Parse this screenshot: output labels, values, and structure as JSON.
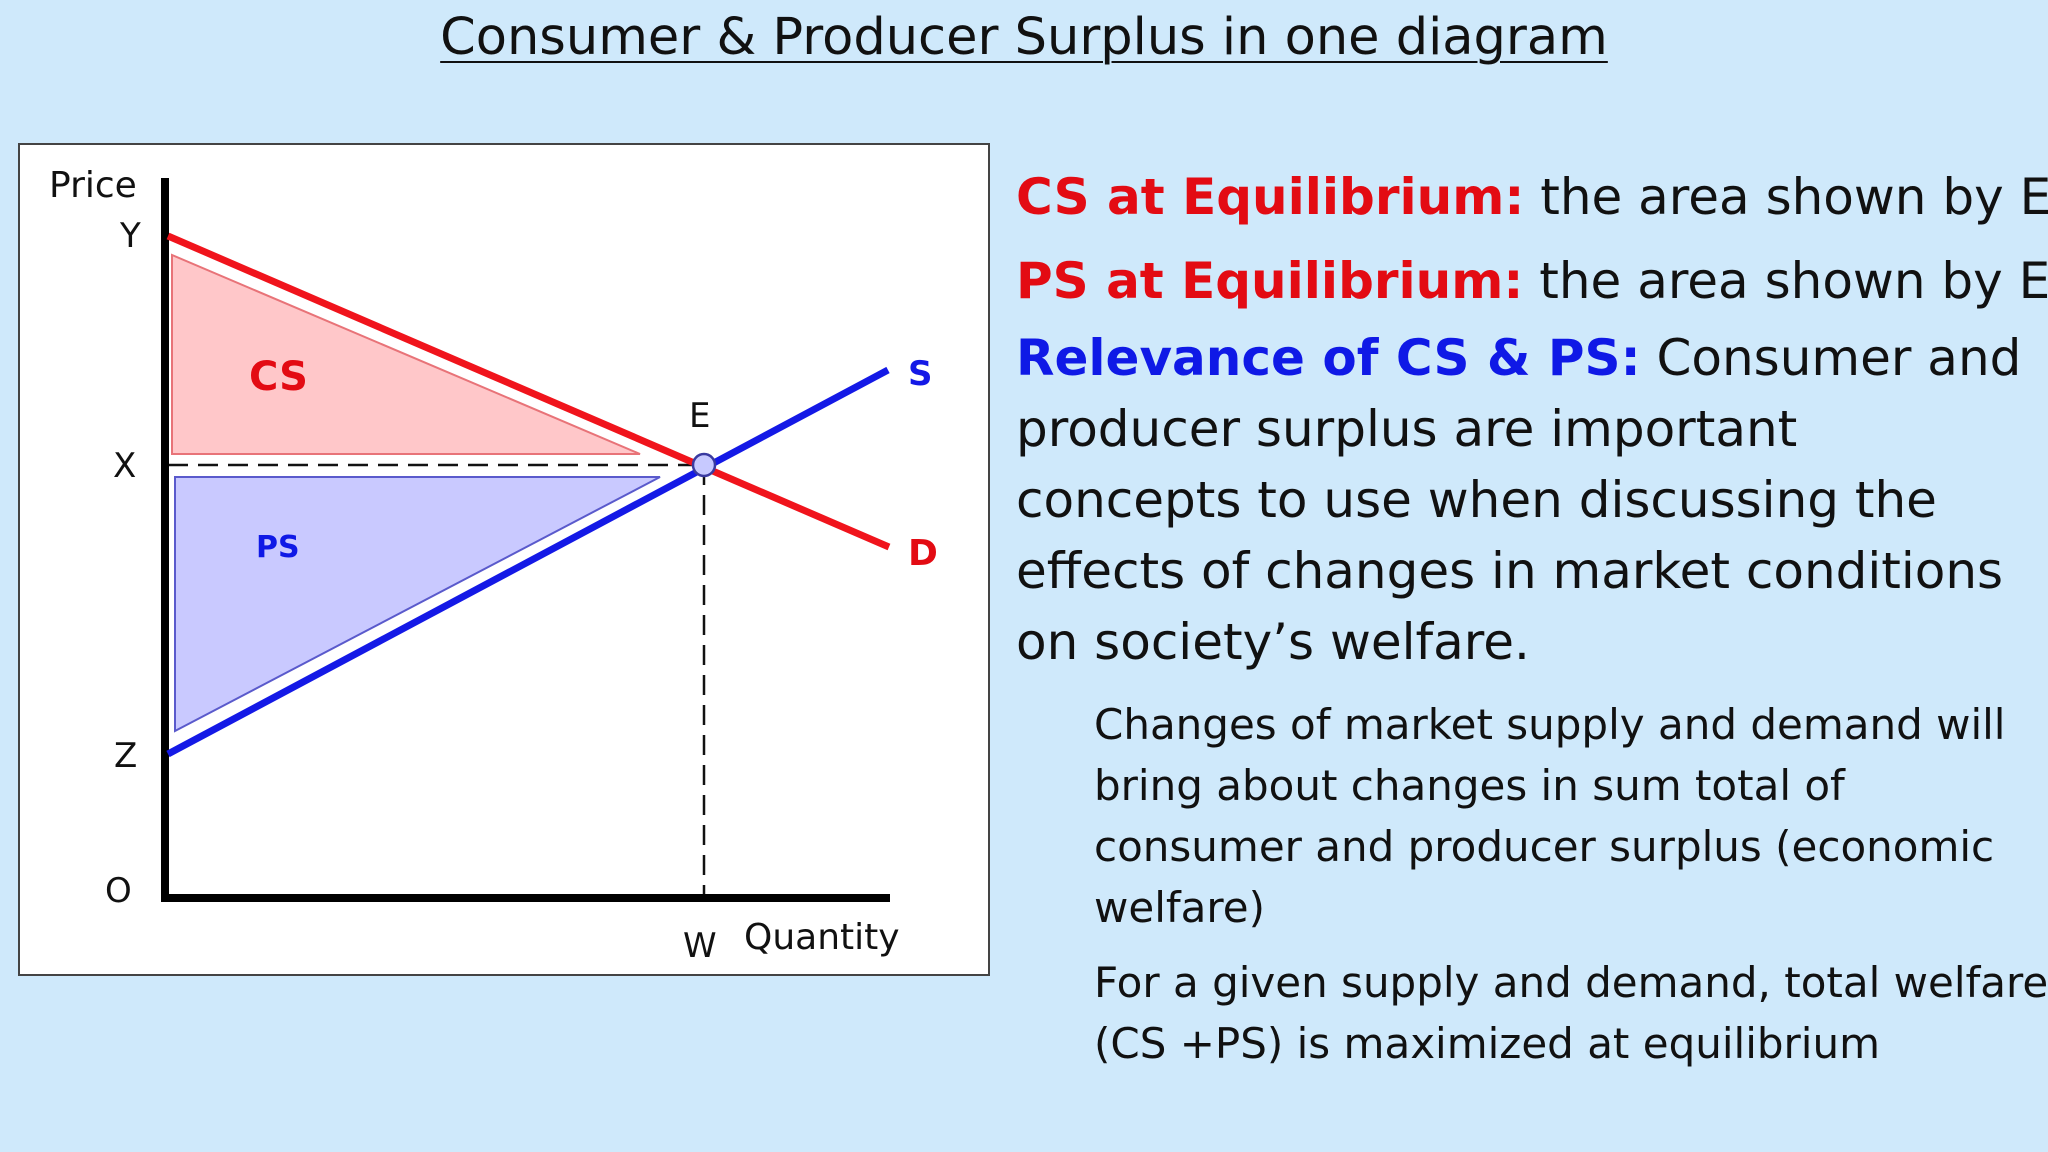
{
  "title": "Consumer & Producer Surplus in one diagram",
  "diagram": {
    "y_axis_label": "Price",
    "x_axis_label": "Quantity",
    "labels": {
      "Y": "Y",
      "X": "X",
      "Z": "Z",
      "O": "O",
      "E": "E",
      "W": "W",
      "S": "S",
      "D": "D",
      "CS": "CS",
      "PS": "PS"
    },
    "colors": {
      "demand": "#f0141c",
      "supply": "#1419e6",
      "cs_fill": "#ffc7c9",
      "ps_fill": "#c9c9ff"
    }
  },
  "text": {
    "cs_label": "CS at Equilibrium:",
    "cs_text": " the area shown by EXY",
    "ps_label": "PS at Equilibrium:",
    "ps_text": " the area shown by EXZ",
    "rel_label": "Relevance of CS & PS:",
    "rel_text": " Consumer and producer surplus are important concepts to use when discussing the effects of changes in market conditions on society’s welfare.",
    "bullet1": "Changes of market supply and demand will bring about changes in sum total of consumer and producer surplus (economic welfare)",
    "bullet2": "For a given supply and demand, total welfare (CS +PS) is maximized at equilibrium"
  }
}
